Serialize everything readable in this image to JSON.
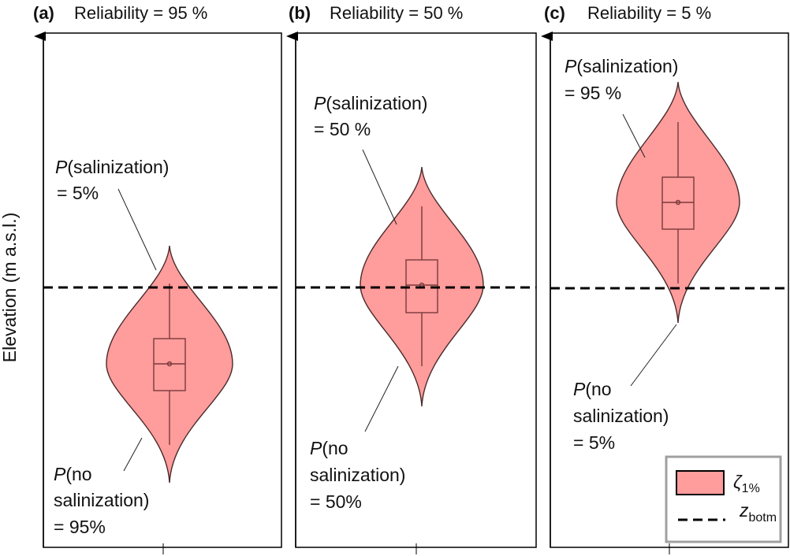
{
  "y_axis_label": "Elevation (m a.s.l.)",
  "colors": {
    "violin_fill": "#ff9c9c",
    "legend_border": "#a0a0a0"
  },
  "panels": [
    {
      "tag": "(a)",
      "title": "Reliability = 95 %",
      "upper": {
        "p": "P",
        "line1": "(salinization)",
        "line2": "= 5%"
      },
      "lower": {
        "p": "P",
        "line1": "(no",
        "line2": "salinization)",
        "line3": "= 95%"
      }
    },
    {
      "tag": "(b)",
      "title": "Reliability = 50 %",
      "upper": {
        "p": "P",
        "line1": "(salinization)",
        "line2": "= 50 %"
      },
      "lower": {
        "p": "P",
        "line1": "(no",
        "line2": "salinization)",
        "line3": "= 50%"
      }
    },
    {
      "tag": "(c)",
      "title": "Reliability = 5 %",
      "upper": {
        "p": "P",
        "line1": "(salinization)",
        "line2": "= 95 %"
      },
      "lower": {
        "p": "P",
        "line1": "(no",
        "line2": "salinization)",
        "line3": "= 5%"
      }
    }
  ],
  "legend": {
    "violin": {
      "symbol": "ζ",
      "sub": "1%"
    },
    "line": {
      "symbol": "z",
      "sub": "botm"
    }
  }
}
